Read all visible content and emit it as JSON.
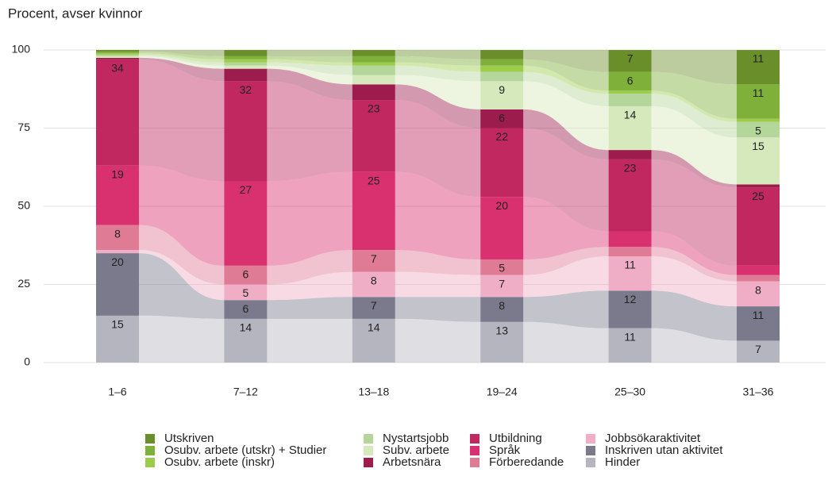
{
  "chart_data": {
    "type": "alluvial",
    "title": "Procent, avser kvinnor",
    "categories": [
      "1–6",
      "7–12",
      "13–18",
      "19–24",
      "25–30",
      "31–36"
    ],
    "ylim": [
      0,
      100
    ],
    "yticks": [
      0,
      25,
      50,
      75,
      100
    ],
    "grid": true,
    "series": [
      {
        "name": "Utskriven",
        "color": "#6a8f2a",
        "values": [
          0.5,
          2,
          2,
          3,
          7,
          11
        ],
        "value_labels": [
          null,
          null,
          null,
          null,
          "7",
          "11"
        ]
      },
      {
        "name": "Osubv. arbete (utskr) + Studier",
        "color": "#7fb03a",
        "values": [
          0.5,
          1,
          2,
          2,
          6,
          11
        ],
        "value_labels": [
          null,
          null,
          null,
          null,
          "6",
          "11"
        ]
      },
      {
        "name": "Osubv. arbete (inskr)",
        "color": "#9ccc4a",
        "values": [
          0.5,
          1,
          1,
          2,
          1,
          1
        ],
        "value_labels": [
          null,
          null,
          null,
          null,
          null,
          null
        ]
      },
      {
        "name": "Nystartsjobb",
        "color": "#b5d69a",
        "values": [
          0.5,
          1,
          3,
          3,
          4,
          5
        ],
        "value_labels": [
          null,
          null,
          null,
          null,
          null,
          "5"
        ]
      },
      {
        "name": "Subv. arbete",
        "color": "#d6e9bd",
        "values": [
          0.5,
          1,
          3,
          9,
          14,
          15
        ],
        "value_labels": [
          null,
          null,
          null,
          "9",
          "14",
          "15"
        ]
      },
      {
        "name": "Arbetsnära",
        "color": "#9c1c4e",
        "values": [
          0.5,
          4,
          5,
          6,
          3,
          1
        ],
        "value_labels": [
          null,
          null,
          null,
          "6",
          null,
          null
        ]
      },
      {
        "name": "Utbildning",
        "color": "#c0285f",
        "values": [
          34,
          32,
          23,
          22,
          23,
          25
        ],
        "value_labels": [
          "34",
          "32",
          "23",
          "22",
          "23",
          "25"
        ]
      },
      {
        "name": "Språk",
        "color": "#d9306f",
        "values": [
          19,
          27,
          25,
          20,
          5,
          3
        ],
        "value_labels": [
          "19",
          "27",
          "25",
          "20",
          null,
          null
        ]
      },
      {
        "name": "Förberedande",
        "color": "#e07b96",
        "values": [
          8,
          6,
          7,
          5,
          3,
          2
        ],
        "value_labels": [
          "8",
          "6",
          "7",
          "5",
          null,
          null
        ]
      },
      {
        "name": "Jobbsökaraktivitet",
        "color": "#efaec6",
        "values": [
          1,
          5,
          8,
          7,
          11,
          8
        ],
        "value_labels": [
          null,
          "5",
          "8",
          "7",
          "11",
          "8"
        ]
      },
      {
        "name": "Inskriven utan aktivitet",
        "color": "#7a7a8c",
        "values": [
          20,
          6,
          7,
          8,
          12,
          11
        ],
        "value_labels": [
          "20",
          "6",
          "7",
          "8",
          "12",
          "11"
        ]
      },
      {
        "name": "Hinder",
        "color": "#b5b5c0",
        "values": [
          15,
          14,
          14,
          13,
          11,
          7
        ],
        "value_labels": [
          "15",
          "14",
          "14",
          "13",
          "11",
          "7"
        ]
      }
    ]
  }
}
